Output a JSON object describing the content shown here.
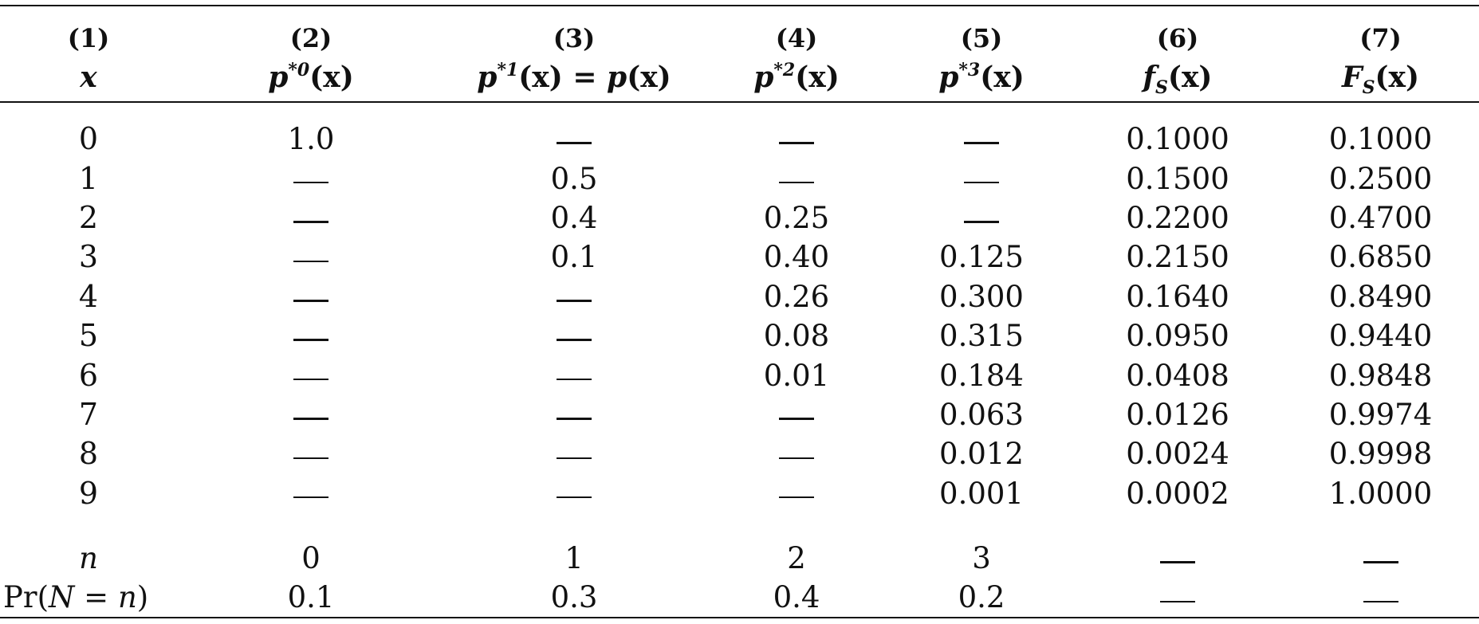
{
  "columns": [
    {
      "num": "(1)",
      "label": "x"
    },
    {
      "num": "(2)",
      "label": "p*0(x)"
    },
    {
      "num": "(3)",
      "label": "p*1(x) = p(x)"
    },
    {
      "num": "(4)",
      "label": "p*2(x)"
    },
    {
      "num": "(5)",
      "label": "p*3(x)"
    },
    {
      "num": "(6)",
      "label": "fS(x)"
    },
    {
      "num": "(7)",
      "label": "FS(x)"
    }
  ],
  "header_symbols": {
    "x": "x",
    "p": "p",
    "star0": "*0",
    "star1": "*1",
    "star2": "*2",
    "star3": "*3",
    "arg": "(x)",
    "eq": " = ",
    "f": "f",
    "F": "F",
    "S": "S"
  },
  "rows": [
    {
      "x": "0",
      "p0": "1.0",
      "p1": "—",
      "p2": "—",
      "p3": "—",
      "fS": "0.1000",
      "FS": "0.1000"
    },
    {
      "x": "1",
      "p0": "—",
      "p1": "0.5",
      "p2": "—",
      "p3": "—",
      "fS": "0.1500",
      "FS": "0.2500"
    },
    {
      "x": "2",
      "p0": "—",
      "p1": "0.4",
      "p2": "0.25",
      "p3": "—",
      "fS": "0.2200",
      "FS": "0.4700"
    },
    {
      "x": "3",
      "p0": "—",
      "p1": "0.1",
      "p2": "0.40",
      "p3": "0.125",
      "fS": "0.2150",
      "FS": "0.6850"
    },
    {
      "x": "4",
      "p0": "—",
      "p1": "—",
      "p2": "0.26",
      "p3": "0.300",
      "fS": "0.1640",
      "FS": "0.8490"
    },
    {
      "x": "5",
      "p0": "—",
      "p1": "—",
      "p2": "0.08",
      "p3": "0.315",
      "fS": "0.0950",
      "FS": "0.9440"
    },
    {
      "x": "6",
      "p0": "—",
      "p1": "—",
      "p2": "0.01",
      "p3": "0.184",
      "fS": "0.0408",
      "FS": "0.9848"
    },
    {
      "x": "7",
      "p0": "—",
      "p1": "—",
      "p2": "—",
      "p3": "0.063",
      "fS": "0.0126",
      "FS": "0.9974"
    },
    {
      "x": "8",
      "p0": "—",
      "p1": "—",
      "p2": "—",
      "p3": "0.012",
      "fS": "0.0024",
      "FS": "0.9998"
    },
    {
      "x": "9",
      "p0": "—",
      "p1": "—",
      "p2": "—",
      "p3": "0.001",
      "fS": "0.0002",
      "FS": "1.0000"
    }
  ],
  "footer_rows": [
    {
      "label": "n",
      "values": [
        "0",
        "1",
        "2",
        "3",
        "—",
        "—"
      ]
    },
    {
      "label": "Pr(N = n)",
      "values": [
        "0.1",
        "0.3",
        "0.4",
        "0.2",
        "—",
        "—"
      ]
    }
  ],
  "footer_label_parts": {
    "pr": "Pr(",
    "N": "N",
    "eq": " = ",
    "n": "n",
    "close": ")"
  }
}
